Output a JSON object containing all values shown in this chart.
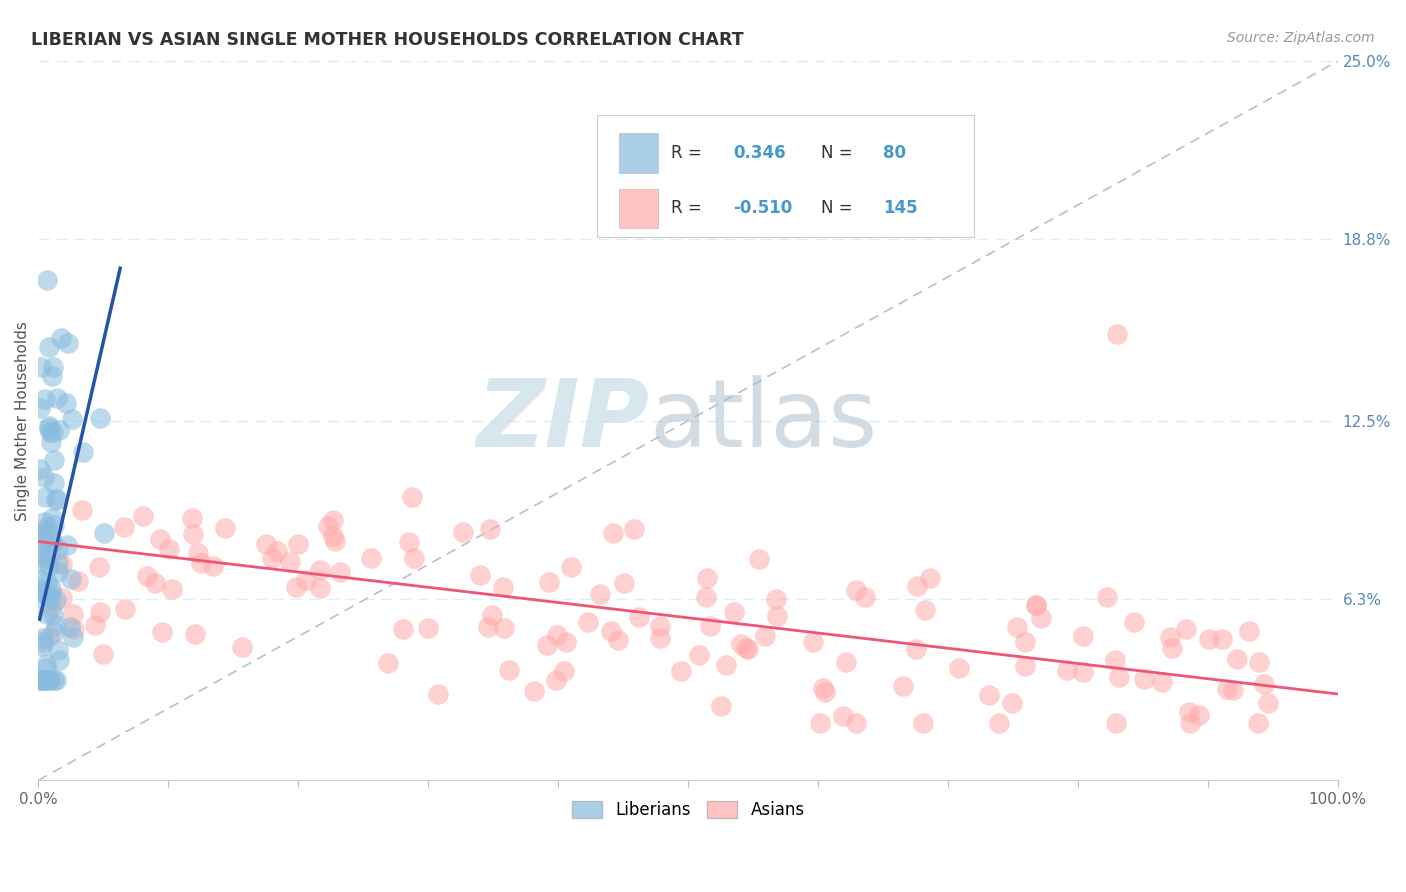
{
  "title": "LIBERIAN VS ASIAN SINGLE MOTHER HOUSEHOLDS CORRELATION CHART",
  "source": "Source: ZipAtlas.com",
  "ylabel": "Single Mother Households",
  "xlim": [
    0,
    1.0
  ],
  "ylim": [
    0,
    0.25
  ],
  "xtick_labels": [
    "0.0%",
    "",
    "",
    "",
    "",
    "",
    "",
    "",
    "",
    "",
    "100.0%"
  ],
  "ytick_right": [
    0.063,
    0.125,
    0.188,
    0.25
  ],
  "ytick_right_labels": [
    "6.3%",
    "12.5%",
    "18.8%",
    "25.0%"
  ],
  "legend_blue_r": "0.346",
  "legend_blue_n": "80",
  "legend_pink_r": "-0.510",
  "legend_pink_n": "145",
  "blue_color": "#88BBDD",
  "pink_color": "#FFAAAA",
  "blue_line_color": "#2255AA",
  "pink_line_color": "#EE5577",
  "diag_line_color": "#AABBCC",
  "watermark_zip_color": "#C8DCE8",
  "watermark_atlas_color": "#AABBC8",
  "grid_color": "#DDECF5",
  "title_color": "#333333",
  "source_color": "#999999",
  "ylabel_color": "#555555",
  "tick_color": "#666666",
  "right_tick_color": "#5588BB",
  "legend_text_color": "#333333",
  "legend_val_color": "#4499CC"
}
